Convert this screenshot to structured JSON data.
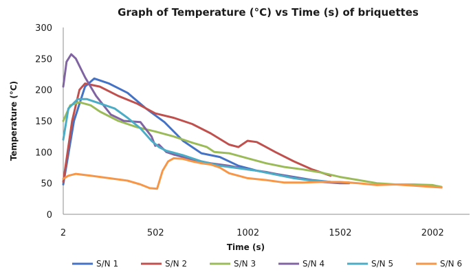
{
  "chart_data": {
    "type": "line",
    "title": "Graph of Temperature (°C) vs Time (s) of briquettes",
    "xlabel": "Time (s)",
    "ylabel": "Temperature (°C)",
    "xlim": [
      2,
      2202
    ],
    "ylim": [
      0,
      300
    ],
    "x_ticks": [
      "2",
      "502",
      "1002",
      "1502",
      "2002"
    ],
    "y_ticks": [
      "0",
      "50",
      "100",
      "150",
      "200",
      "250",
      "300"
    ],
    "grid": false,
    "legend_position": "bottom",
    "series": [
      {
        "name": "S/N 1",
        "color": "#4472C4",
        "points": [
          [
            2,
            48
          ],
          [
            60,
            150
          ],
          [
            120,
            205
          ],
          [
            170,
            218
          ],
          [
            250,
            210
          ],
          [
            350,
            195
          ],
          [
            450,
            170
          ],
          [
            550,
            148
          ],
          [
            650,
            118
          ],
          [
            750,
            98
          ],
          [
            850,
            92
          ],
          [
            950,
            78
          ],
          [
            1050,
            70
          ],
          [
            1150,
            65
          ],
          [
            1250,
            60
          ],
          [
            1350,
            55
          ],
          [
            1450,
            52
          ],
          [
            1550,
            51
          ]
        ]
      },
      {
        "name": "S/N 2",
        "color": "#C0504D",
        "points": [
          [
            2,
            52
          ],
          [
            50,
            150
          ],
          [
            90,
            200
          ],
          [
            120,
            210
          ],
          [
            200,
            205
          ],
          [
            300,
            190
          ],
          [
            400,
            178
          ],
          [
            500,
            162
          ],
          [
            600,
            155
          ],
          [
            700,
            145
          ],
          [
            800,
            130
          ],
          [
            900,
            112
          ],
          [
            950,
            108
          ],
          [
            1000,
            118
          ],
          [
            1050,
            116
          ],
          [
            1150,
            100
          ],
          [
            1250,
            85
          ],
          [
            1350,
            72
          ],
          [
            1450,
            62
          ]
        ]
      },
      {
        "name": "S/N 3",
        "color": "#9BBB59",
        "points": [
          [
            2,
            150
          ],
          [
            40,
            175
          ],
          [
            90,
            180
          ],
          [
            150,
            175
          ],
          [
            200,
            165
          ],
          [
            300,
            150
          ],
          [
            400,
            140
          ],
          [
            500,
            133
          ],
          [
            600,
            125
          ],
          [
            700,
            115
          ],
          [
            780,
            108
          ],
          [
            820,
            100
          ],
          [
            900,
            98
          ],
          [
            1000,
            90
          ],
          [
            1100,
            82
          ],
          [
            1200,
            76
          ],
          [
            1300,
            72
          ],
          [
            1400,
            67
          ],
          [
            1500,
            60
          ],
          [
            1600,
            55
          ],
          [
            1700,
            50
          ],
          [
            1800,
            48
          ],
          [
            1900,
            48
          ],
          [
            2000,
            47
          ],
          [
            2050,
            44
          ]
        ]
      },
      {
        "name": "S/N 4",
        "color": "#8064A2",
        "points": [
          [
            2,
            205
          ],
          [
            20,
            245
          ],
          [
            45,
            257
          ],
          [
            70,
            250
          ],
          [
            120,
            220
          ],
          [
            180,
            190
          ],
          [
            260,
            160
          ],
          [
            330,
            150
          ],
          [
            420,
            148
          ],
          [
            480,
            125
          ],
          [
            500,
            110
          ],
          [
            520,
            112
          ],
          [
            560,
            100
          ],
          [
            600,
            96
          ],
          [
            700,
            88
          ],
          [
            800,
            82
          ],
          [
            900,
            78
          ],
          [
            1000,
            72
          ],
          [
            1100,
            68
          ],
          [
            1200,
            62
          ],
          [
            1300,
            57
          ],
          [
            1400,
            52
          ],
          [
            1500,
            50
          ],
          [
            1550,
            50
          ]
        ]
      },
      {
        "name": "S/N 5",
        "color": "#4BACC6",
        "points": [
          [
            2,
            120
          ],
          [
            30,
            170
          ],
          [
            80,
            185
          ],
          [
            130,
            185
          ],
          [
            200,
            178
          ],
          [
            280,
            170
          ],
          [
            350,
            155
          ],
          [
            420,
            138
          ],
          [
            480,
            118
          ],
          [
            520,
            108
          ],
          [
            560,
            102
          ],
          [
            650,
            95
          ],
          [
            750,
            85
          ],
          [
            850,
            78
          ],
          [
            950,
            74
          ],
          [
            1050,
            70
          ],
          [
            1150,
            64
          ],
          [
            1250,
            58
          ],
          [
            1350,
            54
          ],
          [
            1450,
            52
          ]
        ]
      },
      {
        "name": "S/N 6",
        "color": "#F79646",
        "points": [
          [
            2,
            57
          ],
          [
            30,
            62
          ],
          [
            70,
            65
          ],
          [
            150,
            62
          ],
          [
            250,
            58
          ],
          [
            350,
            54
          ],
          [
            420,
            48
          ],
          [
            470,
            42
          ],
          [
            510,
            41
          ],
          [
            540,
            70
          ],
          [
            570,
            85
          ],
          [
            600,
            90
          ],
          [
            650,
            89
          ],
          [
            700,
            85
          ],
          [
            750,
            82
          ],
          [
            800,
            80
          ],
          [
            850,
            75
          ],
          [
            900,
            66
          ],
          [
            950,
            62
          ],
          [
            1000,
            58
          ],
          [
            1100,
            55
          ],
          [
            1200,
            51
          ],
          [
            1300,
            51
          ],
          [
            1400,
            52
          ],
          [
            1500,
            52
          ],
          [
            1600,
            50
          ],
          [
            1700,
            47
          ],
          [
            1800,
            48
          ],
          [
            1900,
            46
          ],
          [
            2000,
            44
          ],
          [
            2050,
            43
          ]
        ]
      }
    ]
  }
}
